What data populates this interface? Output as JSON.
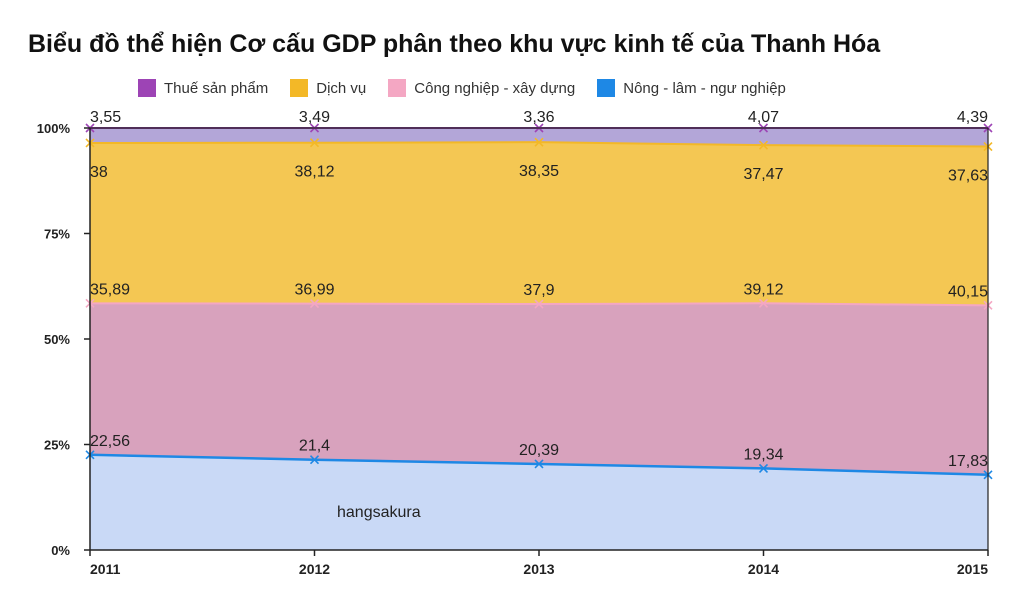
{
  "chart_data": {
    "type": "area",
    "stacked": "percent",
    "title": "Biểu đồ thể hiện Cơ cấu GDP phân theo khu vực kinh tế của Thanh Hóa",
    "categories": [
      "2011",
      "2012",
      "2013",
      "2014",
      "2015"
    ],
    "yticks": [
      "0%",
      "25%",
      "50%",
      "75%",
      "100%"
    ],
    "ylim": [
      0,
      100
    ],
    "legend_position": "top",
    "series": [
      {
        "name": "Nông - lâm - ngư nghiệp",
        "values": [
          22.56,
          21.4,
          20.39,
          19.34,
          17.83
        ],
        "labels": [
          "22,56",
          "21,4",
          "20,39",
          "19,34",
          "17,83"
        ],
        "color": "#1e88e5",
        "fill": "#c9d9f6"
      },
      {
        "name": "Công nghiệp - xây dựng",
        "values": [
          35.89,
          36.99,
          37.9,
          39.12,
          40.15
        ],
        "labels": [
          "35,89",
          "36,99",
          "37,9",
          "39,12",
          "40,15"
        ],
        "color": "#f4a7c3",
        "fill": "#d8a2bd"
      },
      {
        "name": "Dịch vụ",
        "values": [
          38,
          38.12,
          38.35,
          37.47,
          37.63
        ],
        "labels": [
          "38",
          "38,12",
          "38,35",
          "37,47",
          "37,63"
        ],
        "color": "#f3b827",
        "fill": "#f4c753"
      },
      {
        "name": "Thuế sản phẩm",
        "values": [
          3.55,
          3.49,
          3.36,
          4.07,
          4.39
        ],
        "labels": [
          "3,55",
          "3,49",
          "3,36",
          "4,07",
          "4,39"
        ],
        "color": "#9d44b5",
        "fill": "#b3a6d8"
      }
    ],
    "annotation": "hangsakura"
  },
  "legend_order": [
    3,
    2,
    1,
    0
  ]
}
